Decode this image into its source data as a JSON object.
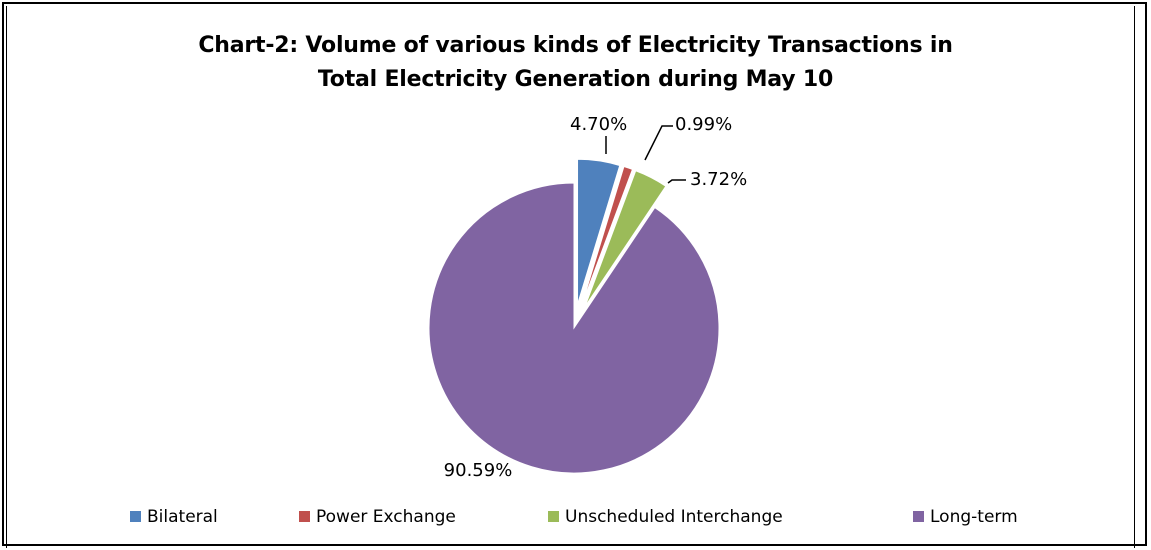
{
  "chart_data": {
    "type": "pie",
    "title": "Chart-2: Volume of various kinds of Electricity Transactions in Total Electricity Generation during May 10",
    "title_lines": [
      "Chart-2: Volume of various kinds of Electricity Transactions in",
      "Total Electricity Generation during May 10"
    ],
    "categories": [
      "Bilateral",
      "Power Exchange",
      "Unscheduled Interchange",
      "Long-term"
    ],
    "values": [
      4.7,
      0.99,
      3.72,
      90.59
    ],
    "labels": [
      "4.70%",
      "0.99%",
      "3.72%",
      "90.59%"
    ],
    "colors": [
      "#4f81bd",
      "#c0504d",
      "#9bbb59",
      "#8064a2"
    ],
    "exploded": true,
    "legend_position": "bottom"
  }
}
